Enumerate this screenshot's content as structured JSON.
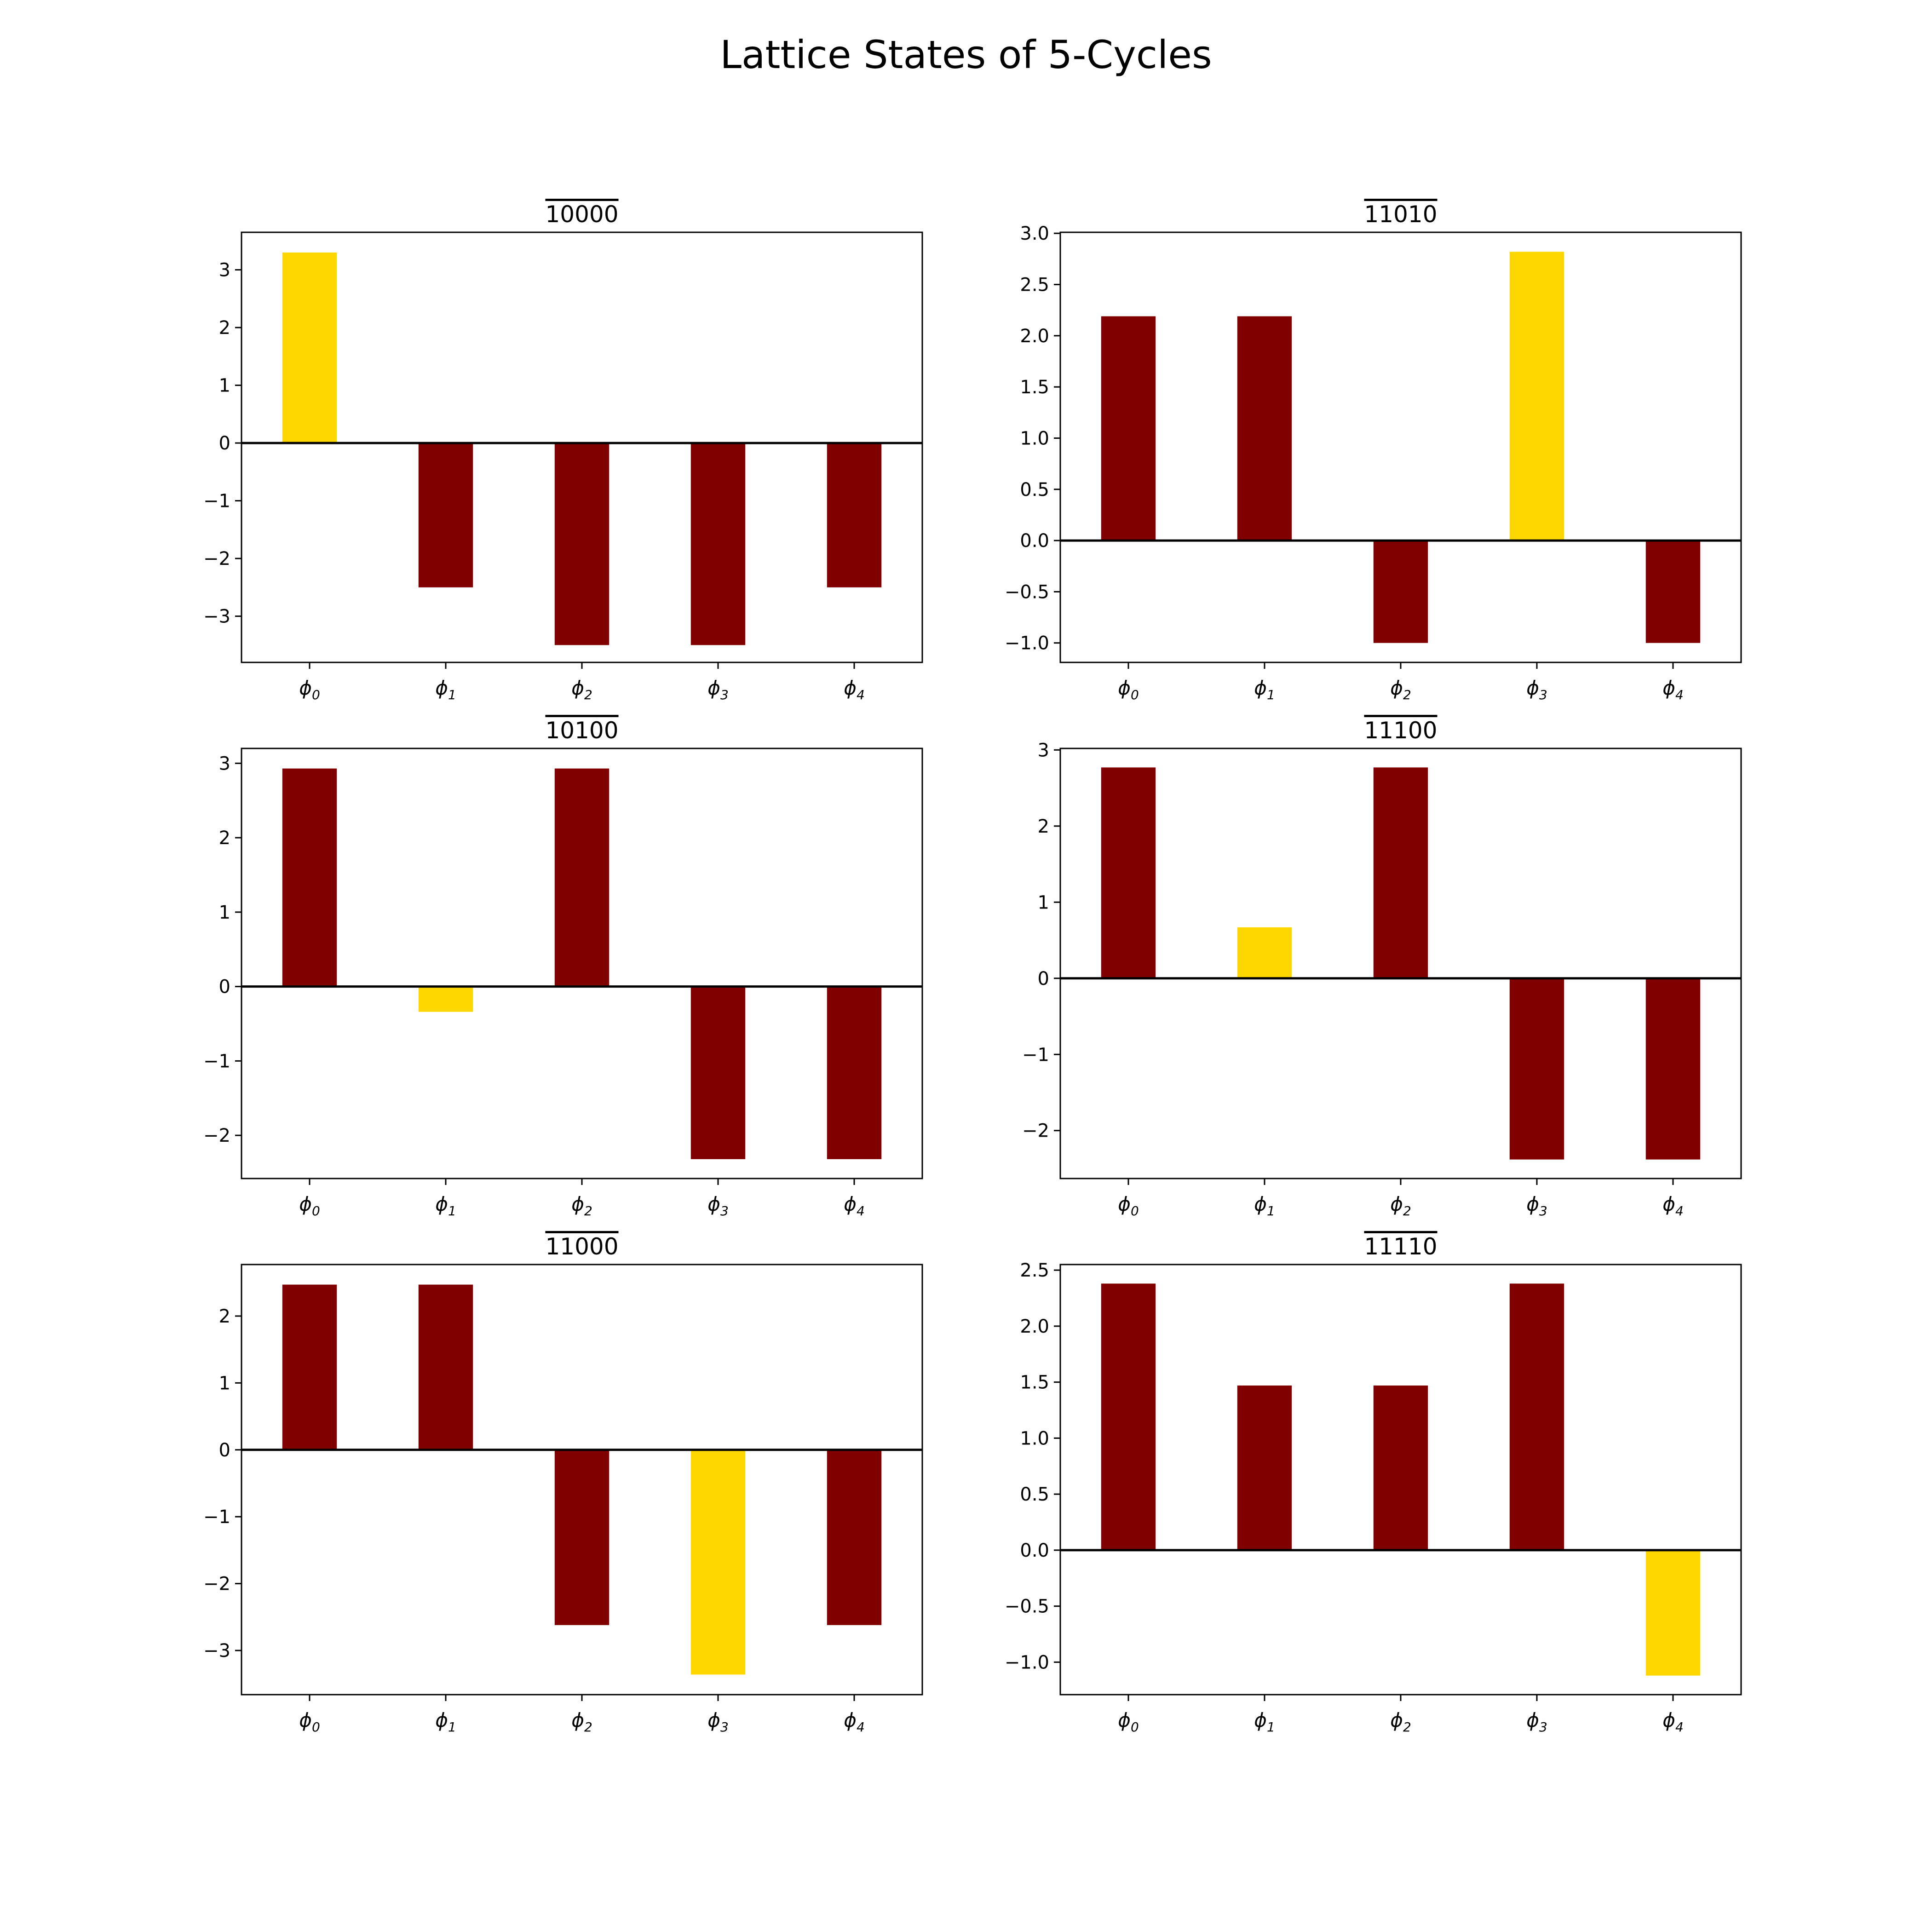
{
  "figure": {
    "title": "Lattice States of 5-Cycles"
  },
  "colors": {
    "default_bar": "#800000",
    "highlight_bar": "#FFD700",
    "axis": "#000000"
  },
  "chart_data": [
    {
      "type": "bar",
      "title": "10000",
      "title_overline": true,
      "categories": [
        "ϕ0",
        "ϕ1",
        "ϕ2",
        "ϕ3",
        "ϕ4"
      ],
      "values": [
        3.3,
        -2.5,
        -3.5,
        -3.5,
        -2.5
      ],
      "highlight_index": 0,
      "ylim": [
        -3.8,
        3.65
      ],
      "yticks": [
        -3,
        -2,
        -1,
        0,
        1,
        2,
        3
      ],
      "xlabel": "",
      "ylabel": "",
      "grid": false
    },
    {
      "type": "bar",
      "title": "11010",
      "title_overline": true,
      "categories": [
        "ϕ0",
        "ϕ1",
        "ϕ2",
        "ϕ3",
        "ϕ4"
      ],
      "values": [
        2.19,
        2.19,
        -1.0,
        2.82,
        -1.0
      ],
      "highlight_index": 3,
      "ylim": [
        -1.19,
        3.01
      ],
      "yticks": [
        -1.0,
        -0.5,
        0.0,
        0.5,
        1.0,
        1.5,
        2.0,
        2.5,
        3.0
      ],
      "xlabel": "",
      "ylabel": "",
      "grid": false
    },
    {
      "type": "bar",
      "title": "10100",
      "title_overline": true,
      "categories": [
        "ϕ0",
        "ϕ1",
        "ϕ2",
        "ϕ3",
        "ϕ4"
      ],
      "values": [
        2.93,
        -0.34,
        2.93,
        -2.32,
        -2.32
      ],
      "highlight_index": 1,
      "ylim": [
        -2.58,
        3.2
      ],
      "yticks": [
        -2,
        -1,
        0,
        1,
        2,
        3
      ],
      "xlabel": "",
      "ylabel": "",
      "grid": false
    },
    {
      "type": "bar",
      "title": "11100",
      "title_overline": true,
      "categories": [
        "ϕ0",
        "ϕ1",
        "ϕ2",
        "ϕ3",
        "ϕ4"
      ],
      "values": [
        2.77,
        0.67,
        2.77,
        -2.38,
        -2.38
      ],
      "highlight_index": 1,
      "ylim": [
        -2.63,
        3.02
      ],
      "yticks": [
        -2,
        -1,
        0,
        1,
        2,
        3
      ],
      "xlabel": "",
      "ylabel": "",
      "grid": false
    },
    {
      "type": "bar",
      "title": "11000",
      "title_overline": true,
      "categories": [
        "ϕ0",
        "ϕ1",
        "ϕ2",
        "ϕ3",
        "ϕ4"
      ],
      "values": [
        2.47,
        2.47,
        -2.62,
        -3.36,
        -2.62
      ],
      "highlight_index": 3,
      "ylim": [
        -3.66,
        2.77
      ],
      "yticks": [
        -3,
        -2,
        -1,
        0,
        1,
        2
      ],
      "xlabel": "",
      "ylabel": "",
      "grid": false
    },
    {
      "type": "bar",
      "title": "11110",
      "title_overline": true,
      "categories": [
        "ϕ0",
        "ϕ1",
        "ϕ2",
        "ϕ3",
        "ϕ4"
      ],
      "values": [
        2.38,
        1.47,
        1.47,
        2.38,
        -1.12
      ],
      "highlight_index": 4,
      "ylim": [
        -1.29,
        2.55
      ],
      "yticks": [
        -1.0,
        -0.5,
        0.0,
        0.5,
        1.0,
        1.5,
        2.0,
        2.5
      ],
      "xlabel": "",
      "ylabel": "",
      "grid": false
    }
  ]
}
